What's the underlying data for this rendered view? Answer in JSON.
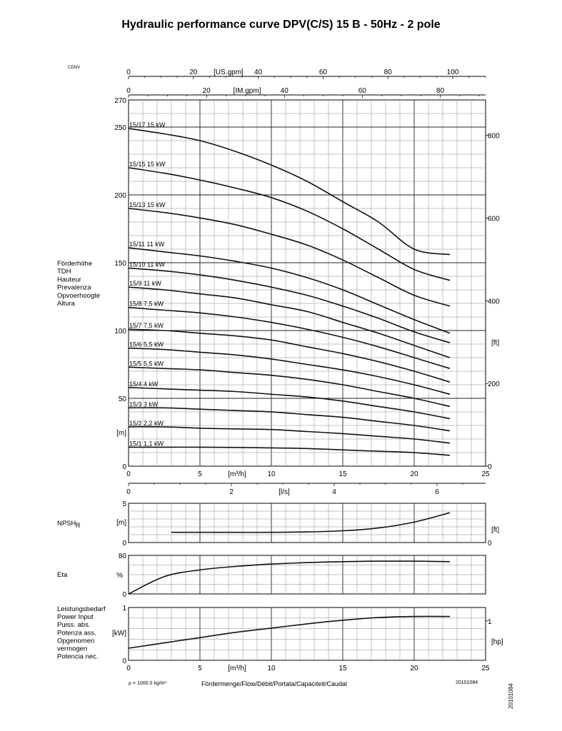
{
  "title": "Hydraulic performance curve DPV(C/S) 15 B - 50Hz - 2 pole",
  "corner_mark": "CDNV",
  "side_code": "20101084",
  "footer": {
    "density": "ρ = 1000.0 kg/m³",
    "flow_label": "Fördermenge/Flow/Débit/Portata/Capaciteit/Caudal",
    "code": "20101084"
  },
  "chart_data": [
    {
      "type": "line",
      "title": "Hydraulic performance curve DPV(C/S) 15 B - 50Hz - 2 pole",
      "xlabel": "[m³/h]",
      "ylabel_lines": [
        "Förderhöhe",
        "TDH",
        "Hauteur",
        "Prevalenza",
        "Opvoerhoogte",
        "Altura"
      ],
      "y_unit": "[m]",
      "y2_unit": "[ft]",
      "top_axis_1_unit": "[US.gpm]",
      "top_axis_2_unit": "[IM.gpm]",
      "bottom_axis_2_unit": "[l/s]",
      "xlim": [
        0,
        25
      ],
      "ylim": [
        0,
        270
      ],
      "x_ticks": [
        "0",
        "5",
        "10",
        "15",
        "20",
        "25"
      ],
      "y_ticks": [
        "0",
        "50",
        "100",
        "150",
        "200",
        "250",
        "270"
      ],
      "y2_ticks": [
        "0",
        "200",
        "400",
        "600",
        "800"
      ],
      "us_gpm_ticks": [
        "0",
        "20",
        "40",
        "60",
        "80",
        "100"
      ],
      "im_gpm_ticks": [
        "0",
        "20",
        "40",
        "60",
        "80"
      ],
      "ls_ticks": [
        "0",
        "2",
        "4",
        "6"
      ],
      "grid": true,
      "x": [
        0,
        2.5,
        5,
        7.5,
        10,
        12.5,
        15,
        17.5,
        20,
        22.5
      ],
      "series": [
        {
          "name": "15/17 15 kW",
          "values": [
            249,
            245,
            240,
            232,
            222,
            210,
            195,
            180,
            160,
            156
          ]
        },
        {
          "name": "15/15 15 kW",
          "values": [
            220,
            216,
            211,
            205,
            198,
            188,
            175,
            160,
            145,
            137
          ]
        },
        {
          "name": "15/13 15 kW",
          "values": [
            190,
            187,
            183,
            178,
            171,
            163,
            152,
            139,
            126,
            118
          ]
        },
        {
          "name": "15/11 11 kW",
          "values": [
            161,
            158,
            155,
            151,
            146,
            139,
            130,
            119,
            108,
            98
          ]
        },
        {
          "name": "15/10 11 kW",
          "values": [
            146,
            144,
            141,
            137,
            132,
            126,
            118,
            109,
            99,
            91
          ]
        },
        {
          "name": "15/9 11 kW",
          "values": [
            132,
            130,
            127,
            124,
            119,
            114,
            106,
            98,
            89,
            80
          ]
        },
        {
          "name": "15/8 7,5 kW",
          "values": [
            117,
            115,
            113,
            110,
            106,
            101,
            95,
            88,
            80,
            72
          ]
        },
        {
          "name": "15/7 7,5 kW",
          "values": [
            101,
            100,
            98,
            96,
            93,
            88,
            83,
            77,
            70,
            62
          ]
        },
        {
          "name": "15/6 5,5 kW",
          "values": [
            87,
            86,
            84,
            82,
            79,
            75,
            71,
            66,
            60,
            53
          ]
        },
        {
          "name": "15/5 5,5 kW",
          "values": [
            73,
            72,
            71,
            69,
            67,
            64,
            60,
            55,
            50,
            44
          ]
        },
        {
          "name": "15/4 4 kW",
          "values": [
            58,
            57,
            56,
            55,
            53,
            51,
            48,
            44,
            40,
            35
          ]
        },
        {
          "name": "15/3 3 kW",
          "values": [
            43,
            43,
            42,
            41,
            40,
            38,
            36,
            33,
            30,
            26
          ]
        },
        {
          "name": "15/2 2,2 kW",
          "values": [
            29,
            29,
            28,
            27.5,
            27,
            25.5,
            24,
            22,
            20,
            17
          ]
        },
        {
          "name": "15/1 1,1 kW",
          "values": [
            14,
            14,
            14,
            13.8,
            13.5,
            13,
            12,
            11,
            10,
            8
          ]
        }
      ]
    },
    {
      "type": "line",
      "ylabel": "NPSHR",
      "y_unit": "[m]",
      "y2_unit": "[ft]",
      "xlim": [
        0,
        25
      ],
      "ylim": [
        0,
        5
      ],
      "y_ticks": [
        "0",
        "5"
      ],
      "y2_ticks": [
        "0"
      ],
      "grid": true,
      "x": [
        3,
        5,
        7.5,
        10,
        12.5,
        15,
        17.5,
        20,
        22.5
      ],
      "values": [
        1.3,
        1.3,
        1.3,
        1.3,
        1.35,
        1.5,
        1.85,
        2.6,
        3.8
      ]
    },
    {
      "type": "line",
      "ylabel": "Eta",
      "y_unit": "%",
      "xlim": [
        0,
        25
      ],
      "ylim": [
        0,
        80
      ],
      "y_ticks": [
        "0",
        "80"
      ],
      "grid": true,
      "x": [
        0,
        2.5,
        5,
        7.5,
        10,
        12.5,
        15,
        17.5,
        20,
        22.5
      ],
      "values": [
        0,
        36,
        50,
        57,
        62,
        65,
        67,
        68,
        68,
        67
      ]
    },
    {
      "type": "line",
      "ylabel_lines": [
        "Leistungsbedarf",
        "Power Input",
        "Puiss. abs.",
        "Potenza ass.",
        "Opgenomen",
        "vermogen",
        "Potencia nec."
      ],
      "y_unit": "[kW]",
      "y2_unit": "[hp]",
      "xlabel": "[m³/h]",
      "xlim": [
        0,
        25
      ],
      "ylim": [
        0,
        1
      ],
      "y_ticks": [
        "0",
        "1"
      ],
      "y2_ticks": [
        "1"
      ],
      "x_ticks": [
        "0",
        "5",
        "10",
        "15",
        "20",
        "25"
      ],
      "grid": true,
      "x": [
        0,
        2.5,
        5,
        7.5,
        10,
        12.5,
        15,
        17.5,
        20,
        22.5
      ],
      "values": [
        0.23,
        0.33,
        0.43,
        0.53,
        0.61,
        0.69,
        0.76,
        0.81,
        0.83,
        0.83
      ]
    }
  ]
}
